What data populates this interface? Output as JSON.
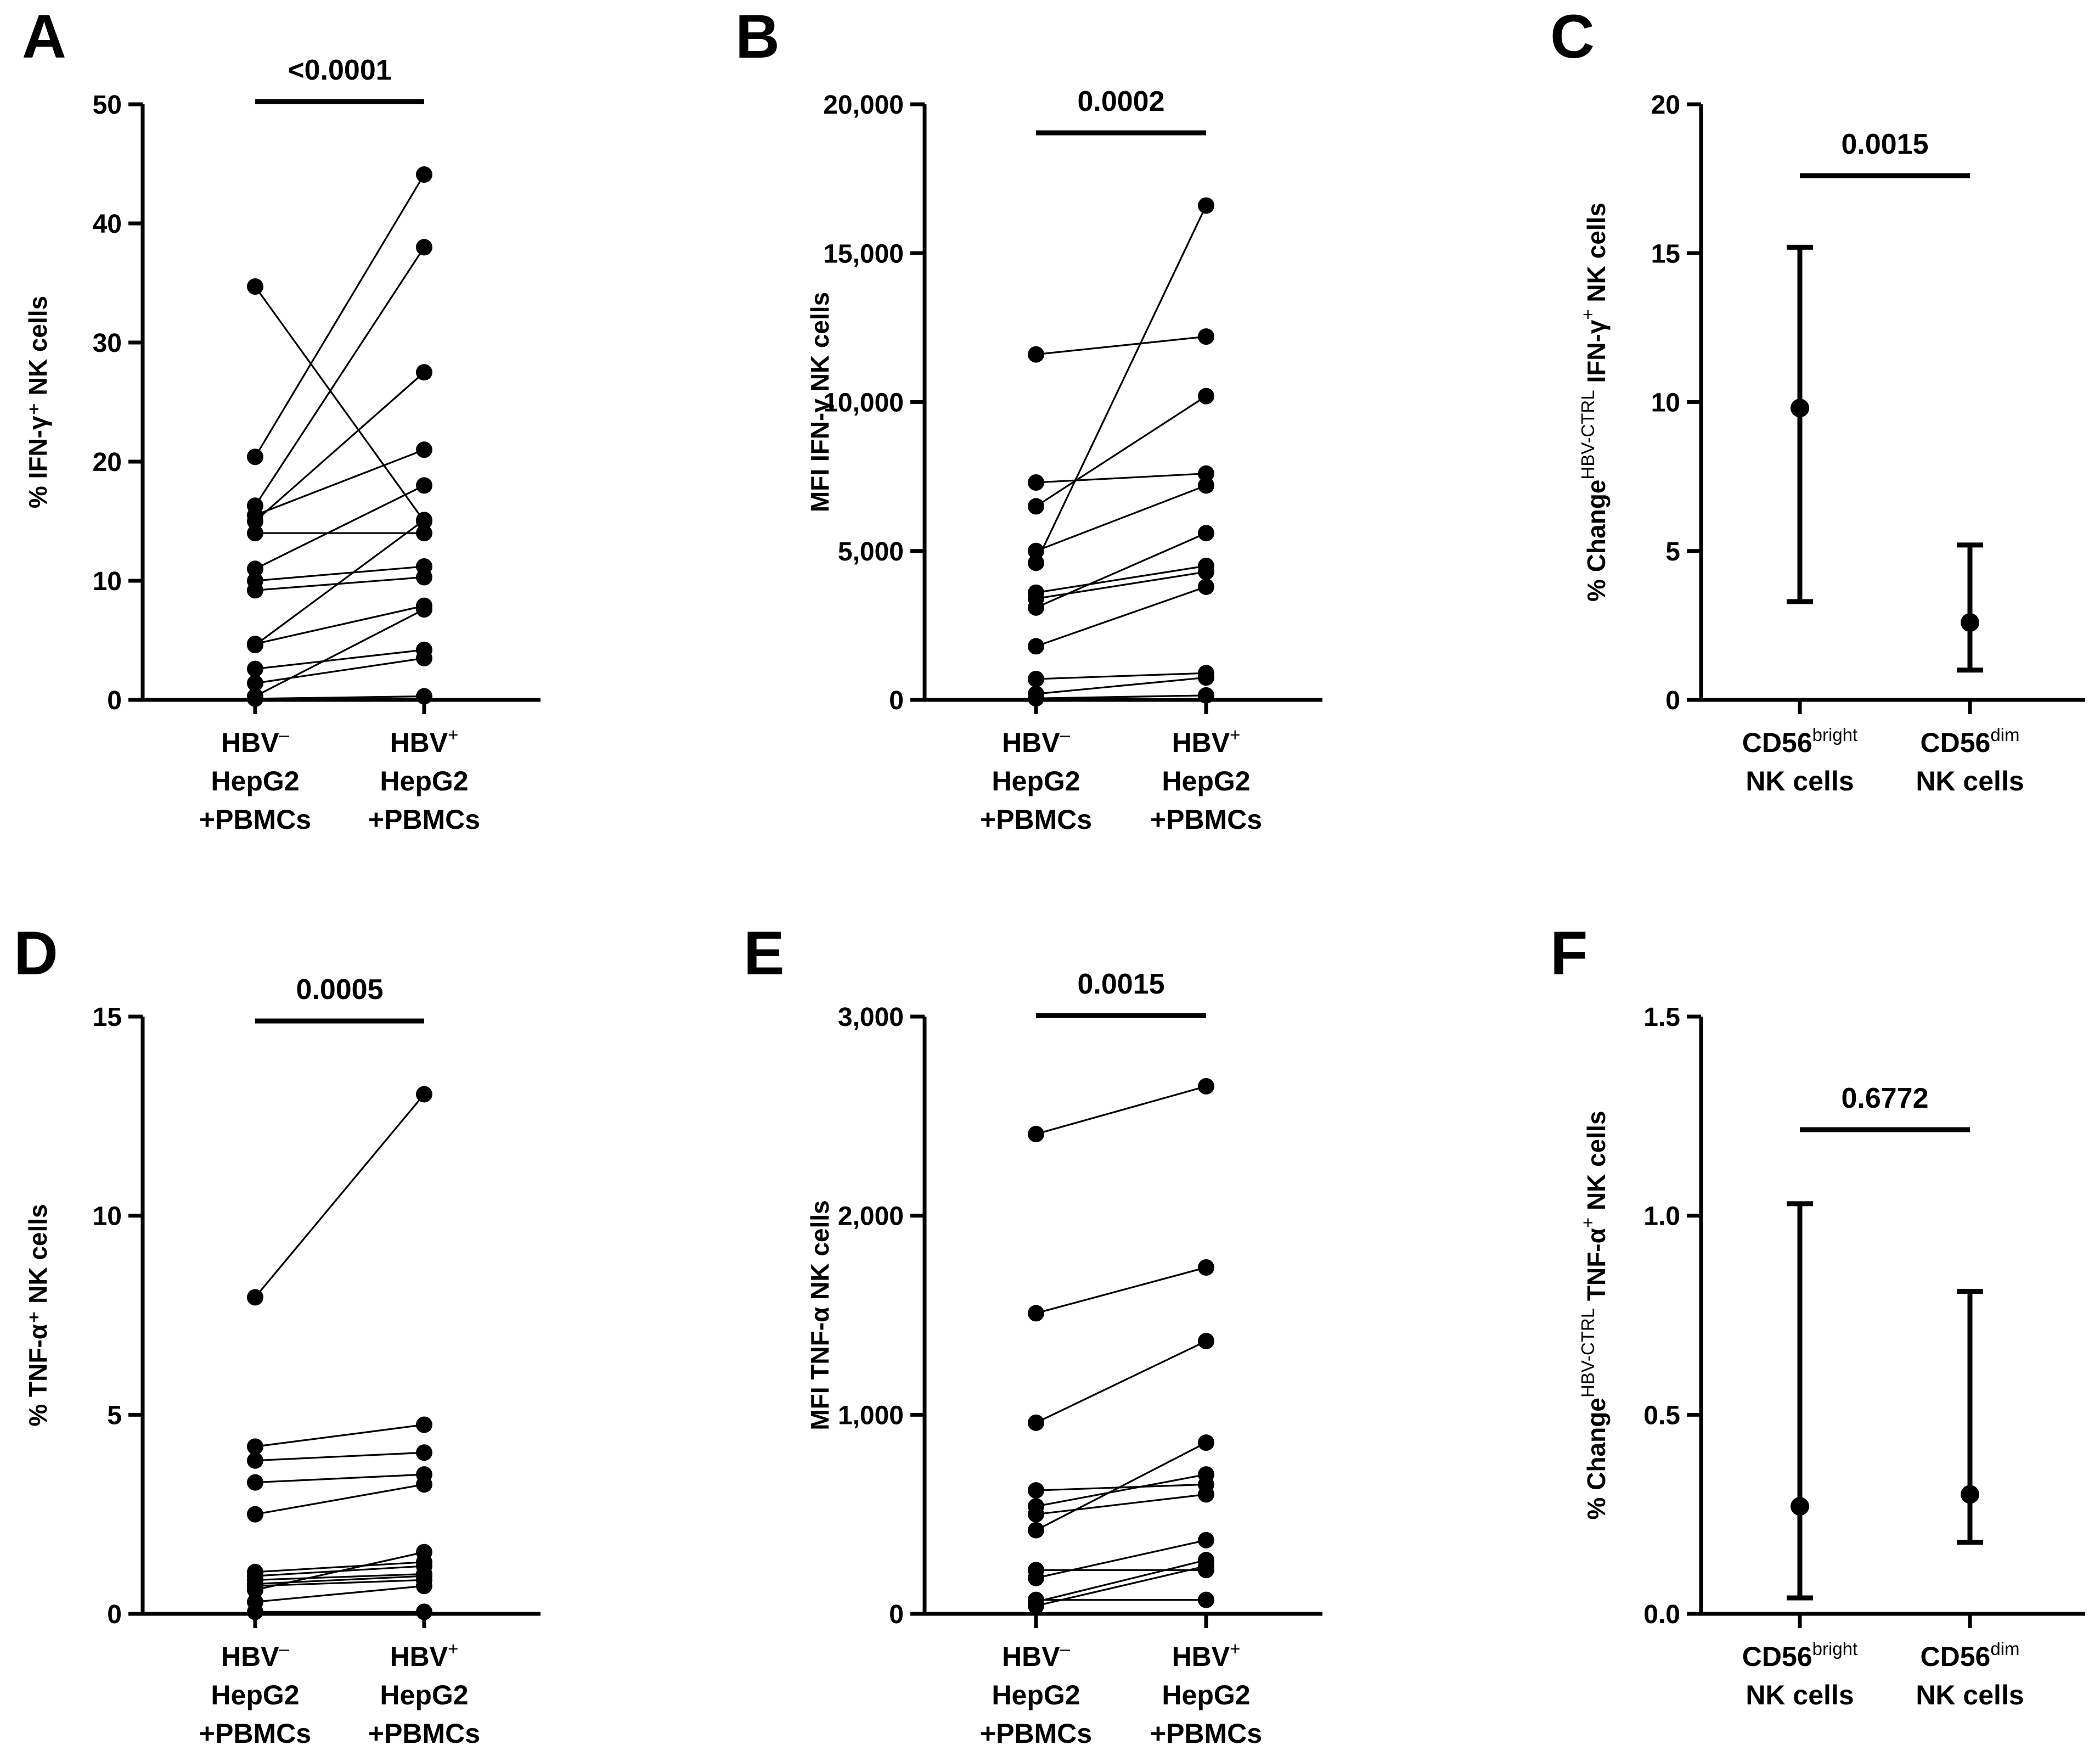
{
  "chart_data": [
    {
      "id": "A",
      "type": "paired-line",
      "panel_label": "A",
      "ylabel": "% IFN-γ⁺ NK cells",
      "ylim": [
        0,
        50
      ],
      "yticks": [
        0,
        10,
        20,
        30,
        40,
        50
      ],
      "ytick_labels": [
        "0",
        "10",
        "20",
        "30",
        "40",
        "50"
      ],
      "categories": [
        {
          "line1": "HBV",
          "sup": "–",
          "line2": "HepG2",
          "line3": "+PBMCs"
        },
        {
          "line1": "HBV",
          "sup": "+",
          "line2": "HepG2",
          "line3": "+PBMCs"
        }
      ],
      "significance": "<0.0001",
      "pairs": [
        [
          34.7,
          15.0
        ],
        [
          20.4,
          44.1
        ],
        [
          16.3,
          38.0
        ],
        [
          15.5,
          21.0
        ],
        [
          15.0,
          27.5
        ],
        [
          14.0,
          14.0
        ],
        [
          11.0,
          18.0
        ],
        [
          10.0,
          11.2
        ],
        [
          9.2,
          10.3
        ],
        [
          4.7,
          7.9
        ],
        [
          4.6,
          15.1
        ],
        [
          2.6,
          4.2
        ],
        [
          1.4,
          3.5
        ],
        [
          0.3,
          7.6
        ],
        [
          0.1,
          0.3
        ]
      ]
    },
    {
      "id": "B",
      "type": "paired-line",
      "panel_label": "B",
      "ylabel": "MFI IFN-γ NK cells",
      "ylim": [
        0,
        20000
      ],
      "yticks": [
        0,
        5000,
        10000,
        15000,
        20000
      ],
      "ytick_labels": [
        "0",
        "5,000",
        "10,000",
        "15,000",
        "20,000"
      ],
      "categories": [
        {
          "line1": "HBV",
          "sup": "–",
          "line2": "HepG2",
          "line3": "+PBMCs"
        },
        {
          "line1": "HBV",
          "sup": "+",
          "line2": "HepG2",
          "line3": "+PBMCs"
        }
      ],
      "significance": "0.0002",
      "pairs": [
        [
          11600,
          12200
        ],
        [
          7300,
          7600
        ],
        [
          6500,
          10200
        ],
        [
          5000,
          7200
        ],
        [
          4600,
          16600
        ],
        [
          3600,
          4500
        ],
        [
          3400,
          4300
        ],
        [
          3100,
          5600
        ],
        [
          1800,
          3800
        ],
        [
          700,
          900
        ],
        [
          200,
          750
        ],
        [
          50,
          150
        ]
      ]
    },
    {
      "id": "C",
      "type": "errorbar",
      "panel_label": "C",
      "ylabel_main": "% Change",
      "ylabel_sup": "HBV-CTRL",
      "ylabel_rest": " IFN-γ",
      "ylabel_sup2": "+",
      "ylabel_end": " NK cells",
      "ylim": [
        0,
        20
      ],
      "yticks": [
        0,
        5,
        10,
        15,
        20
      ],
      "ytick_labels": [
        "0",
        "5",
        "10",
        "15",
        "20"
      ],
      "categories": [
        {
          "line1": "CD56",
          "sup": "bright",
          "line2": "NK cells"
        },
        {
          "line1": "CD56",
          "sup": "dim",
          "line2": "NK cells"
        }
      ],
      "significance": "0.0015",
      "points": [
        {
          "mean": 9.8,
          "low": 3.3,
          "high": 15.2
        },
        {
          "mean": 2.6,
          "low": 1.0,
          "high": 5.2
        }
      ]
    },
    {
      "id": "D",
      "type": "paired-line",
      "panel_label": "D",
      "ylabel": "% TNF-α⁺ NK cells",
      "ylim": [
        0,
        15
      ],
      "yticks": [
        0,
        5,
        10,
        15
      ],
      "ytick_labels": [
        "0",
        "5",
        "10",
        "15"
      ],
      "categories": [
        {
          "line1": "HBV",
          "sup": "–",
          "line2": "HepG2",
          "line3": "+PBMCs"
        },
        {
          "line1": "HBV",
          "sup": "+",
          "line2": "HepG2",
          "line3": "+PBMCs"
        }
      ],
      "significance": "0.0005",
      "pairs": [
        [
          7.95,
          13.05
        ],
        [
          4.2,
          4.75
        ],
        [
          3.85,
          4.05
        ],
        [
          3.3,
          3.5
        ],
        [
          2.5,
          3.25
        ],
        [
          1.05,
          1.3
        ],
        [
          0.95,
          1.2
        ],
        [
          0.85,
          1.0
        ],
        [
          0.75,
          0.95
        ],
        [
          0.7,
          0.85
        ],
        [
          0.6,
          1.55
        ],
        [
          0.3,
          0.7
        ],
        [
          0.05,
          0.05
        ]
      ]
    },
    {
      "id": "E",
      "type": "paired-line",
      "panel_label": "E",
      "ylabel": "MFI TNF-α NK cells",
      "ylim": [
        0,
        3000
      ],
      "yticks": [
        0,
        1000,
        2000,
        3000
      ],
      "ytick_labels": [
        "0",
        "1,000",
        "2,000",
        "3,000"
      ],
      "categories": [
        {
          "line1": "HBV",
          "sup": "–",
          "line2": "HepG2",
          "line3": "+PBMCs"
        },
        {
          "line1": "HBV",
          "sup": "+",
          "line2": "HepG2",
          "line3": "+PBMCs"
        }
      ],
      "significance": "0.0015",
      "pairs": [
        [
          2410,
          2650
        ],
        [
          1510,
          1740
        ],
        [
          960,
          1370
        ],
        [
          620,
          650
        ],
        [
          540,
          700
        ],
        [
          500,
          600
        ],
        [
          420,
          860
        ],
        [
          220,
          220
        ],
        [
          180,
          370
        ],
        [
          60,
          270
        ],
        [
          40,
          240
        ],
        [
          70,
          70
        ]
      ]
    },
    {
      "id": "F",
      "type": "errorbar",
      "panel_label": "F",
      "ylabel_main": "% Change",
      "ylabel_sup": "HBV-CTRL",
      "ylabel_rest": " TNF-α",
      "ylabel_sup2": "+",
      "ylabel_end": " NK cells",
      "ylim": [
        0,
        1.5
      ],
      "yticks": [
        0,
        0.5,
        1.0,
        1.5
      ],
      "ytick_labels": [
        "0.0",
        "0.5",
        "1.0",
        "1.5"
      ],
      "categories": [
        {
          "line1": "CD56",
          "sup": "bright",
          "line2": "NK cells"
        },
        {
          "line1": "CD56",
          "sup": "dim",
          "line2": "NK cells"
        }
      ],
      "significance": "0.6772",
      "points": [
        {
          "mean": 0.27,
          "low": 0.04,
          "high": 1.03
        },
        {
          "mean": 0.3,
          "low": 0.18,
          "high": 0.81
        }
      ]
    }
  ]
}
